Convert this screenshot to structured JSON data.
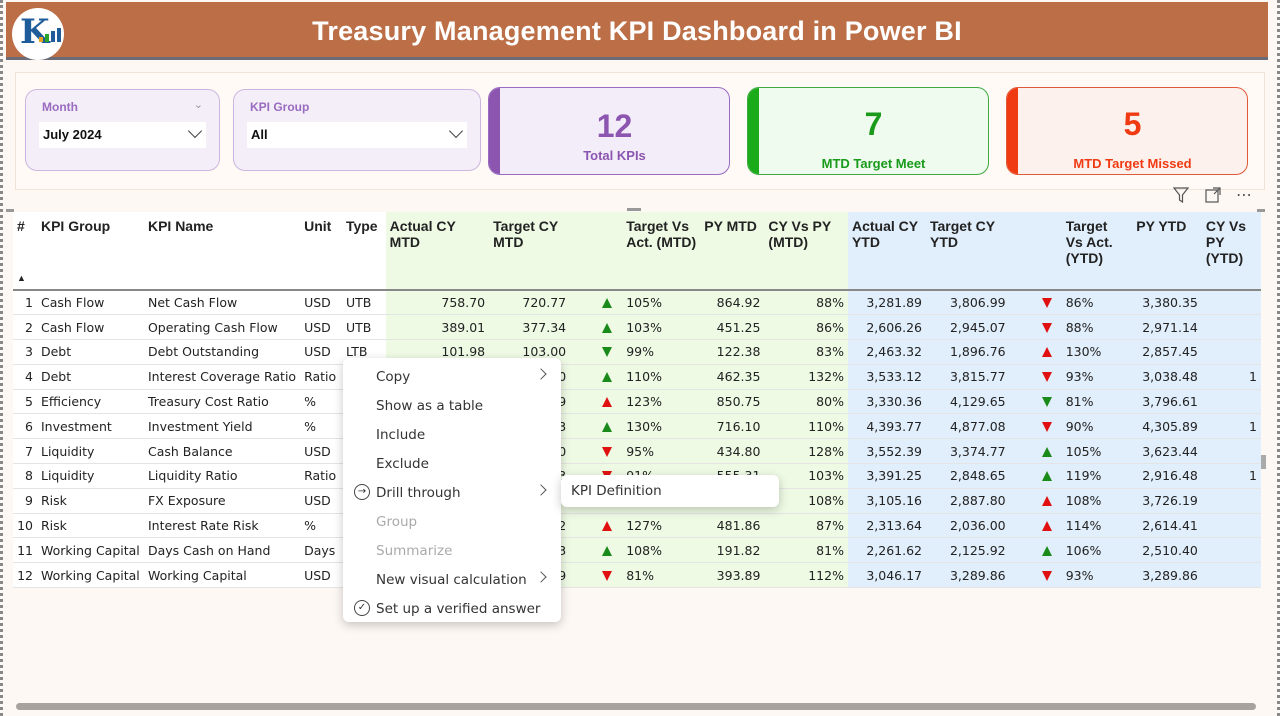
{
  "header": {
    "title": "Treasury Management KPI Dashboard in Power BI",
    "logo_text": "K",
    "colors": {
      "banner": "#bc6f47"
    }
  },
  "slicers": {
    "month": {
      "label": "Month",
      "value": "July 2024"
    },
    "kpi_group": {
      "label": "KPI Group",
      "value": "All"
    }
  },
  "cards": {
    "total": {
      "value": "12",
      "label": "Total KPIs",
      "color": "#8c56b0"
    },
    "meet": {
      "value": "7",
      "label": "MTD Target Meet",
      "color": "#1aaa1a"
    },
    "missed": {
      "value": "5",
      "label": "MTD Target Missed",
      "color": "#ef3a12"
    }
  },
  "visual_header_icons": [
    "filter-icon",
    "focus-mode-icon",
    "more-options-icon"
  ],
  "table": {
    "columns": [
      "#",
      "KPI Group",
      "KPI Name",
      "Unit",
      "Type",
      "Actual CY MTD",
      "Target CY MTD",
      "",
      "Target Vs Act. (MTD)",
      "PY MTD",
      "CY Vs PY (MTD)",
      "Actual CY YTD",
      "Target CY YTD",
      "",
      "Target Vs Act. (YTD)",
      "PY YTD",
      "CY Vs PY (YTD)"
    ],
    "rows": [
      {
        "n": "1",
        "group": "Cash Flow",
        "name": "Net Cash Flow",
        "unit": "USD",
        "type": "UTB",
        "act_mtd": "758.70",
        "tgt_mtd": "720.77",
        "mtd_dir": "up",
        "mtd_color": "green",
        "tva_mtd": "105%",
        "py_mtd": "864.92",
        "cvp_mtd": "88%",
        "act_ytd": "3,281.89",
        "tgt_ytd": "3,806.99",
        "ytd_dir": "down",
        "ytd_color": "red",
        "tva_ytd": "86%",
        "py_ytd": "3,380.35",
        "cvp_ytd": ""
      },
      {
        "n": "2",
        "group": "Cash Flow",
        "name": "Operating Cash Flow",
        "unit": "USD",
        "type": "UTB",
        "act_mtd": "389.01",
        "tgt_mtd": "377.34",
        "mtd_dir": "up",
        "mtd_color": "green",
        "tva_mtd": "103%",
        "py_mtd": "451.25",
        "cvp_mtd": "86%",
        "act_ytd": "2,606.26",
        "tgt_ytd": "2,945.07",
        "ytd_dir": "down",
        "ytd_color": "red",
        "tva_ytd": "88%",
        "py_ytd": "2,971.14",
        "cvp_ytd": ""
      },
      {
        "n": "3",
        "group": "Debt",
        "name": "Debt Outstanding",
        "unit": "USD",
        "type": "LTB",
        "act_mtd": "101.98",
        "tgt_mtd": "103.00",
        "mtd_dir": "down",
        "mtd_color": "green",
        "tva_mtd": "99%",
        "py_mtd": "122.38",
        "cvp_mtd": "83%",
        "act_ytd": "2,463.32",
        "tgt_ytd": "1,896.76",
        "ytd_dir": "up",
        "ytd_color": "red",
        "tva_ytd": "130%",
        "py_ytd": "2,857.45",
        "cvp_ytd": ""
      },
      {
        "n": "4",
        "group": "Debt",
        "name": "Interest Coverage Ratio",
        "unit": "Ratio",
        "type": "",
        "act_mtd": "",
        "tgt_mtd": "0",
        "mtd_dir": "up",
        "mtd_color": "green",
        "tva_mtd": "110%",
        "py_mtd": "462.35",
        "cvp_mtd": "132%",
        "act_ytd": "3,533.12",
        "tgt_ytd": "3,815.77",
        "ytd_dir": "down",
        "ytd_color": "red",
        "tva_ytd": "93%",
        "py_ytd": "3,038.48",
        "cvp_ytd": "1"
      },
      {
        "n": "5",
        "group": "Efficiency",
        "name": "Treasury Cost Ratio",
        "unit": "%",
        "type": "",
        "act_mtd": "",
        "tgt_mtd": "9",
        "mtd_dir": "up",
        "mtd_color": "red",
        "tva_mtd": "123%",
        "py_mtd": "850.75",
        "cvp_mtd": "80%",
        "act_ytd": "3,330.36",
        "tgt_ytd": "4,129.65",
        "ytd_dir": "down",
        "ytd_color": "green",
        "tva_ytd": "81%",
        "py_ytd": "3,796.61",
        "cvp_ytd": ""
      },
      {
        "n": "6",
        "group": "Investment",
        "name": "Investment Yield",
        "unit": "%",
        "type": "",
        "act_mtd": "",
        "tgt_mtd": "3",
        "mtd_dir": "up",
        "mtd_color": "green",
        "tva_mtd": "130%",
        "py_mtd": "716.10",
        "cvp_mtd": "110%",
        "act_ytd": "4,393.77",
        "tgt_ytd": "4,877.08",
        "ytd_dir": "down",
        "ytd_color": "red",
        "tva_ytd": "90%",
        "py_ytd": "4,305.89",
        "cvp_ytd": "1"
      },
      {
        "n": "7",
        "group": "Liquidity",
        "name": "Cash Balance",
        "unit": "USD",
        "type": "",
        "act_mtd": "",
        "tgt_mtd": "0",
        "mtd_dir": "down",
        "mtd_color": "red",
        "tva_mtd": "95%",
        "py_mtd": "434.80",
        "cvp_mtd": "128%",
        "act_ytd": "3,552.39",
        "tgt_ytd": "3,374.77",
        "ytd_dir": "up",
        "ytd_color": "green",
        "tva_ytd": "105%",
        "py_ytd": "3,623.44",
        "cvp_ytd": ""
      },
      {
        "n": "8",
        "group": "Liquidity",
        "name": "Liquidity Ratio",
        "unit": "Ratio",
        "type": "",
        "act_mtd": "",
        "tgt_mtd": "3",
        "mtd_dir": "down",
        "mtd_color": "red",
        "tva_mtd": "91%",
        "py_mtd": "555.31",
        "cvp_mtd": "103%",
        "act_ytd": "3,391.25",
        "tgt_ytd": "2,848.65",
        "ytd_dir": "up",
        "ytd_color": "green",
        "tva_ytd": "119%",
        "py_ytd": "2,916.48",
        "cvp_ytd": "1"
      },
      {
        "n": "9",
        "group": "Risk",
        "name": "FX Exposure",
        "unit": "USD",
        "type": "",
        "act_mtd": "",
        "tgt_mtd": "",
        "mtd_dir": "",
        "mtd_color": "",
        "tva_mtd": "",
        "py_mtd": "6",
        "cvp_mtd": "108%",
        "act_ytd": "3,105.16",
        "tgt_ytd": "2,887.80",
        "ytd_dir": "up",
        "ytd_color": "red",
        "tva_ytd": "108%",
        "py_ytd": "3,726.19",
        "cvp_ytd": ""
      },
      {
        "n": "10",
        "group": "Risk",
        "name": "Interest Rate Risk",
        "unit": "%",
        "type": "",
        "act_mtd": "",
        "tgt_mtd": "2",
        "mtd_dir": "up",
        "mtd_color": "red",
        "tva_mtd": "127%",
        "py_mtd": "481.86",
        "cvp_mtd": "87%",
        "act_ytd": "2,313.64",
        "tgt_ytd": "2,036.00",
        "ytd_dir": "up",
        "ytd_color": "red",
        "tva_ytd": "114%",
        "py_ytd": "2,614.41",
        "cvp_ytd": ""
      },
      {
        "n": "11",
        "group": "Working Capital",
        "name": "Days Cash on Hand",
        "unit": "Days",
        "type": "",
        "act_mtd": "",
        "tgt_mtd": "3",
        "mtd_dir": "up",
        "mtd_color": "green",
        "tva_mtd": "108%",
        "py_mtd": "191.82",
        "cvp_mtd": "81%",
        "act_ytd": "2,261.62",
        "tgt_ytd": "2,125.92",
        "ytd_dir": "up",
        "ytd_color": "green",
        "tva_ytd": "106%",
        "py_ytd": "2,510.40",
        "cvp_ytd": ""
      },
      {
        "n": "12",
        "group": "Working Capital",
        "name": "Working Capital",
        "unit": "USD",
        "type": "",
        "act_mtd": "",
        "tgt_mtd": "9",
        "mtd_dir": "down",
        "mtd_color": "red",
        "tva_mtd": "81%",
        "py_mtd": "393.89",
        "cvp_mtd": "112%",
        "act_ytd": "3,046.17",
        "tgt_ytd": "3,289.86",
        "ytd_dir": "down",
        "ytd_color": "red",
        "tva_ytd": "93%",
        "py_ytd": "3,289.86",
        "cvp_ytd": ""
      }
    ]
  },
  "context_menu": {
    "items": [
      {
        "label": "Copy",
        "submenu": true,
        "disabled": false,
        "icon": ""
      },
      {
        "label": "Show as a table",
        "submenu": false,
        "disabled": false,
        "icon": ""
      },
      {
        "label": "Include",
        "submenu": false,
        "disabled": false,
        "icon": ""
      },
      {
        "label": "Exclude",
        "submenu": false,
        "disabled": false,
        "icon": ""
      },
      {
        "label": "Drill through",
        "submenu": true,
        "disabled": false,
        "icon": "drill-through-icon"
      },
      {
        "label": "Group",
        "submenu": false,
        "disabled": true,
        "icon": ""
      },
      {
        "label": "Summarize",
        "submenu": false,
        "disabled": true,
        "icon": ""
      },
      {
        "label": "New visual calculation",
        "submenu": true,
        "disabled": false,
        "icon": ""
      },
      {
        "label": "Set up a verified answer",
        "submenu": false,
        "disabled": false,
        "icon": "verified-check-icon"
      }
    ],
    "submenu": {
      "label": "KPI Definition"
    }
  },
  "colors": {
    "green_arrow": "#1a8a1a",
    "red_arrow": "#e01010",
    "mtd_bg": "#eefae4",
    "ytd_bg": "#e1eefb"
  }
}
